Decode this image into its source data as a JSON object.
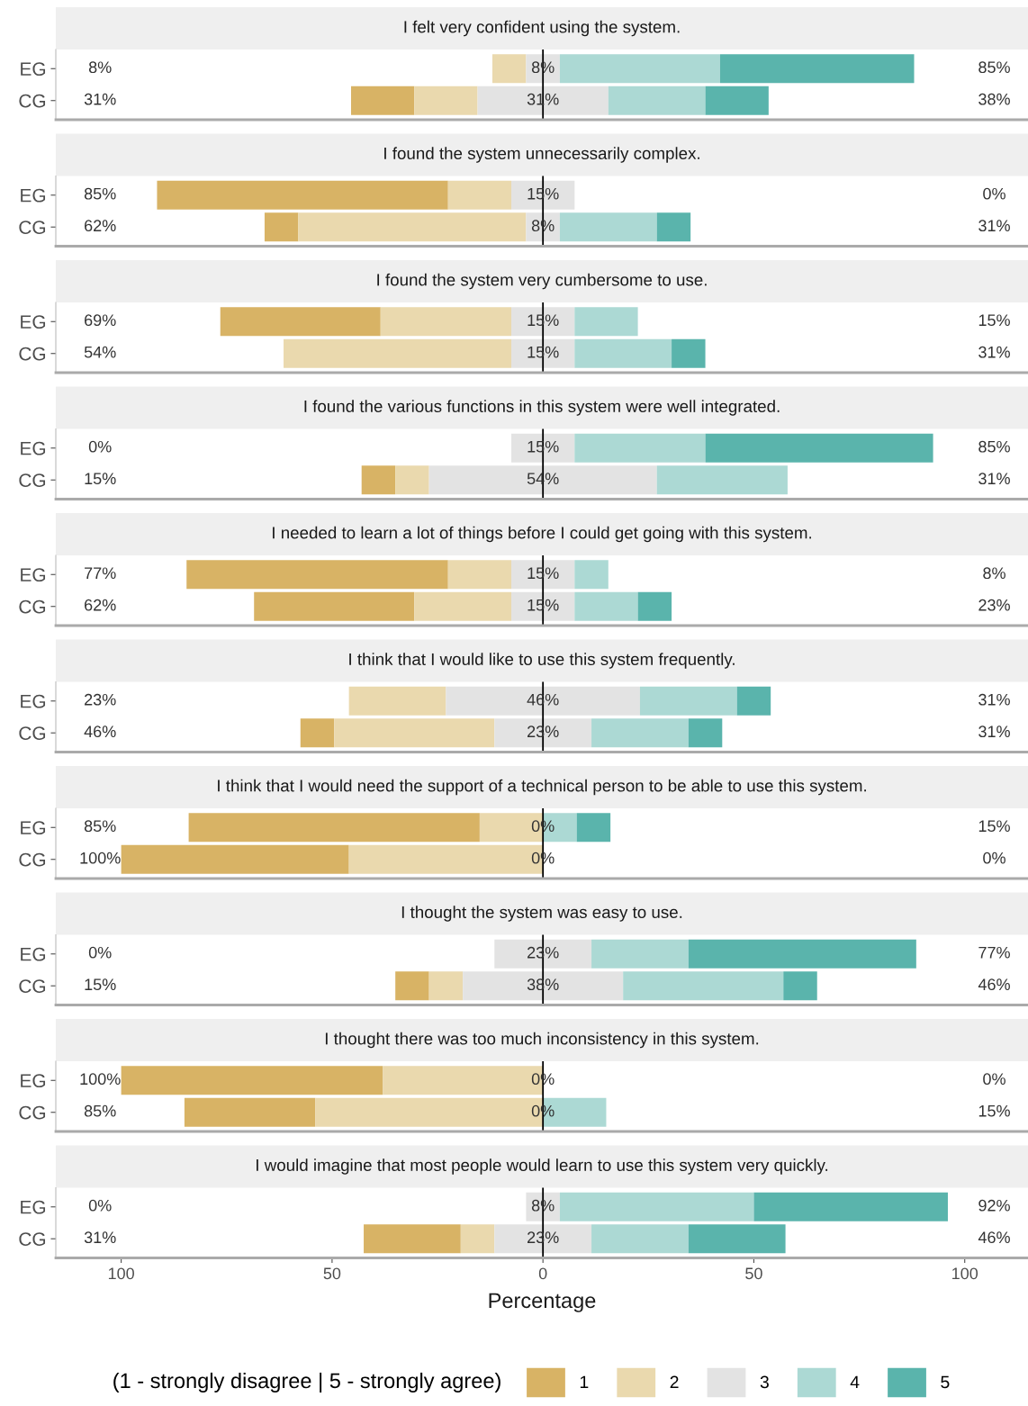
{
  "chart_data": [
    {
      "type": "bar",
      "orientation": "horizontal",
      "tick_labels": "y",
      "title": "I felt very confident using the system.",
      "categories": [
        "EG",
        "CG"
      ],
      "xlim": [
        -115.5,
        115
      ],
      "series": [
        {
          "color": "#d8b365",
          "base": [
            null,
            -45.5
          ],
          "values": [
            null,
            15
          ]
        },
        {
          "color": "#ead9ae",
          "base": [
            -12,
            -30.5
          ],
          "values": [
            8,
            15
          ]
        },
        {
          "color": "#e3e3e3",
          "base": [
            -4,
            -15.5
          ],
          "values": [
            8,
            31
          ]
        },
        {
          "color": "#acd9d4",
          "base": [
            4,
            15.5
          ],
          "values": [
            38,
            23
          ]
        },
        {
          "color": "#5ab4ac",
          "base": [
            42,
            38.5
          ],
          "values": [
            46,
            15
          ]
        }
      ],
      "ref_lines": [
        {
          "axis": "x",
          "value": 0,
          "color": "#000000",
          "line_style": "solid"
        }
      ],
      "annotations": [
        "8%",
        "31%",
        "8%",
        "31%",
        "85%",
        "38%"
      ]
    },
    {
      "type": "bar",
      "orientation": "horizontal",
      "tick_labels": "y",
      "title": "I found the system unnecessarily complex.",
      "categories": [
        "EG",
        "CG"
      ],
      "xlim": [
        -115.5,
        115
      ],
      "series": [
        {
          "color": "#d8b365",
          "base": [
            -91.5,
            -66
          ],
          "values": [
            69,
            8
          ]
        },
        {
          "color": "#ead9ae",
          "base": [
            -22.5,
            -58
          ],
          "values": [
            15,
            54
          ]
        },
        {
          "color": "#e3e3e3",
          "base": [
            -7.5,
            -4
          ],
          "values": [
            15,
            8
          ]
        },
        {
          "color": "#acd9d4",
          "base": [
            null,
            4
          ],
          "values": [
            null,
            23
          ]
        },
        {
          "color": "#5ab4ac",
          "base": [
            null,
            27
          ],
          "values": [
            null,
            8
          ]
        }
      ],
      "ref_lines": [
        {
          "axis": "x",
          "value": 0,
          "color": "#000000",
          "line_style": "solid"
        }
      ],
      "annotations": [
        "85%",
        "62%",
        "15%",
        "8%",
        "0%",
        "31%"
      ]
    },
    {
      "type": "bar",
      "orientation": "horizontal",
      "tick_labels": "y",
      "title": "I found the system very cumbersome to use.",
      "categories": [
        "EG",
        "CG"
      ],
      "xlim": [
        -115.5,
        115
      ],
      "series": [
        {
          "color": "#d8b365",
          "base": [
            -76.5,
            null
          ],
          "values": [
            38,
            null
          ]
        },
        {
          "color": "#ead9ae",
          "base": [
            -38.5,
            -61.5
          ],
          "values": [
            31,
            54
          ]
        },
        {
          "color": "#e3e3e3",
          "base": [
            -7.5,
            -7.5
          ],
          "values": [
            15,
            15
          ]
        },
        {
          "color": "#acd9d4",
          "base": [
            7.5,
            7.5
          ],
          "values": [
            15,
            23
          ]
        },
        {
          "color": "#5ab4ac",
          "base": [
            null,
            30.5
          ],
          "values": [
            null,
            8
          ]
        }
      ],
      "ref_lines": [
        {
          "axis": "x",
          "value": 0,
          "color": "#000000",
          "line_style": "solid"
        }
      ],
      "annotations": [
        "69%",
        "54%",
        "15%",
        "15%",
        "15%",
        "31%"
      ]
    },
    {
      "type": "bar",
      "orientation": "horizontal",
      "tick_labels": "y",
      "title": "I found the various functions in this system were well integrated.",
      "categories": [
        "EG",
        "CG"
      ],
      "xlim": [
        -115.5,
        115
      ],
      "series": [
        {
          "color": "#d8b365",
          "base": [
            null,
            -43
          ],
          "values": [
            null,
            8
          ]
        },
        {
          "color": "#ead9ae",
          "base": [
            null,
            -35
          ],
          "values": [
            null,
            8
          ]
        },
        {
          "color": "#e3e3e3",
          "base": [
            -7.5,
            -27
          ],
          "values": [
            15,
            54
          ]
        },
        {
          "color": "#acd9d4",
          "base": [
            7.5,
            27
          ],
          "values": [
            31,
            31
          ]
        },
        {
          "color": "#5ab4ac",
          "base": [
            38.5,
            null
          ],
          "values": [
            54,
            null
          ]
        }
      ],
      "ref_lines": [
        {
          "axis": "x",
          "value": 0,
          "color": "#000000",
          "line_style": "solid"
        }
      ],
      "annotations": [
        "0%",
        "15%",
        "15%",
        "54%",
        "85%",
        "31%"
      ]
    },
    {
      "type": "bar",
      "orientation": "horizontal",
      "tick_labels": "y",
      "title": "I needed to learn a lot of things before I could get going with this system.",
      "categories": [
        "EG",
        "CG"
      ],
      "xlim": [
        -115.5,
        115
      ],
      "series": [
        {
          "color": "#d8b365",
          "base": [
            -84.5,
            -68.5
          ],
          "values": [
            62,
            38
          ]
        },
        {
          "color": "#ead9ae",
          "base": [
            -22.5,
            -30.5
          ],
          "values": [
            15,
            23
          ]
        },
        {
          "color": "#e3e3e3",
          "base": [
            -7.5,
            -7.5
          ],
          "values": [
            15,
            15
          ]
        },
        {
          "color": "#acd9d4",
          "base": [
            7.5,
            7.5
          ],
          "values": [
            8,
            15
          ]
        },
        {
          "color": "#5ab4ac",
          "base": [
            null,
            22.5
          ],
          "values": [
            null,
            8
          ]
        }
      ],
      "ref_lines": [
        {
          "axis": "x",
          "value": 0,
          "color": "#000000",
          "line_style": "solid"
        }
      ],
      "annotations": [
        "77%",
        "62%",
        "15%",
        "15%",
        "8%",
        "23%"
      ]
    },
    {
      "type": "bar",
      "orientation": "horizontal",
      "tick_labels": "y",
      "title": "I think that I would like to use this system frequently.",
      "categories": [
        "EG",
        "CG"
      ],
      "xlim": [
        -115.5,
        115
      ],
      "series": [
        {
          "color": "#d8b365",
          "base": [
            null,
            -57.5
          ],
          "values": [
            null,
            8
          ]
        },
        {
          "color": "#ead9ae",
          "base": [
            -46,
            -49.5
          ],
          "values": [
            23,
            38
          ]
        },
        {
          "color": "#e3e3e3",
          "base": [
            -23,
            -11.5
          ],
          "values": [
            46,
            23
          ]
        },
        {
          "color": "#acd9d4",
          "base": [
            23,
            11.5
          ],
          "values": [
            23,
            23
          ]
        },
        {
          "color": "#5ab4ac",
          "base": [
            46,
            34.5
          ],
          "values": [
            8,
            8
          ]
        }
      ],
      "ref_lines": [
        {
          "axis": "x",
          "value": 0,
          "color": "#000000",
          "line_style": "solid"
        }
      ],
      "annotations": [
        "23%",
        "46%",
        "46%",
        "23%",
        "31%",
        "31%"
      ]
    },
    {
      "type": "bar",
      "orientation": "horizontal",
      "tick_labels": "y",
      "title": "I think that I would need the support of a technical person to be able to use this system.",
      "categories": [
        "EG",
        "CG"
      ],
      "xlim": [
        -115.5,
        115
      ],
      "series": [
        {
          "color": "#d8b365",
          "base": [
            -84,
            -100
          ],
          "values": [
            69,
            54
          ]
        },
        {
          "color": "#ead9ae",
          "base": [
            -15,
            -46
          ],
          "values": [
            15,
            46
          ]
        },
        {
          "color": "#e3e3e3",
          "base": [
            null,
            null
          ],
          "values": [
            null,
            null
          ]
        },
        {
          "color": "#acd9d4",
          "base": [
            0,
            null
          ],
          "values": [
            8,
            null
          ]
        },
        {
          "color": "#5ab4ac",
          "base": [
            8,
            null
          ],
          "values": [
            8,
            null
          ]
        }
      ],
      "ref_lines": [
        {
          "axis": "x",
          "value": 0,
          "color": "#000000",
          "line_style": "solid"
        }
      ],
      "annotations": [
        "85%",
        "100%",
        "0%",
        "0%",
        "15%",
        "0%"
      ]
    },
    {
      "type": "bar",
      "orientation": "horizontal",
      "tick_labels": "y",
      "title": "I thought the system was easy to use.",
      "categories": [
        "EG",
        "CG"
      ],
      "xlim": [
        -115.5,
        115
      ],
      "series": [
        {
          "color": "#d8b365",
          "base": [
            null,
            -35
          ],
          "values": [
            null,
            8
          ]
        },
        {
          "color": "#ead9ae",
          "base": [
            null,
            -27
          ],
          "values": [
            null,
            8
          ]
        },
        {
          "color": "#e3e3e3",
          "base": [
            -11.5,
            -19
          ],
          "values": [
            23,
            38
          ]
        },
        {
          "color": "#acd9d4",
          "base": [
            11.5,
            19
          ],
          "values": [
            23,
            38
          ]
        },
        {
          "color": "#5ab4ac",
          "base": [
            34.5,
            57
          ],
          "values": [
            54,
            8
          ]
        }
      ],
      "ref_lines": [
        {
          "axis": "x",
          "value": 0,
          "color": "#000000",
          "line_style": "solid"
        }
      ],
      "annotations": [
        "0%",
        "15%",
        "23%",
        "38%",
        "77%",
        "46%"
      ]
    },
    {
      "type": "bar",
      "orientation": "horizontal",
      "tick_labels": "y",
      "title": "I thought there was too much inconsistency in this system.",
      "categories": [
        "EG",
        "CG"
      ],
      "xlim": [
        -115.5,
        115
      ],
      "series": [
        {
          "color": "#d8b365",
          "base": [
            -100,
            -85
          ],
          "values": [
            62,
            31
          ]
        },
        {
          "color": "#ead9ae",
          "base": [
            -38,
            -54
          ],
          "values": [
            38,
            54
          ]
        },
        {
          "color": "#e3e3e3",
          "base": [
            null,
            null
          ],
          "values": [
            null,
            null
          ]
        },
        {
          "color": "#acd9d4",
          "base": [
            null,
            0
          ],
          "values": [
            null,
            15
          ]
        },
        {
          "color": "#5ab4ac",
          "base": [
            null,
            null
          ],
          "values": [
            null,
            null
          ]
        }
      ],
      "ref_lines": [
        {
          "axis": "x",
          "value": 0,
          "color": "#000000",
          "line_style": "solid"
        }
      ],
      "annotations": [
        "100%",
        "85%",
        "0%",
        "0%",
        "0%",
        "15%"
      ]
    },
    {
      "type": "bar",
      "orientation": "horizontal",
      "title": "I would imagine that most people would learn to use this system very quickly.",
      "xlabel": "Percentage",
      "legend": "bottom",
      "legend_title": "(1 - strongly disagree | 5 - strongly agree)",
      "categories": [
        "EG",
        "CG"
      ],
      "xlim": [
        -115.5,
        115
      ],
      "xticks": [
        {
          "value": -100,
          "label": "100"
        },
        {
          "value": -50,
          "label": "50"
        },
        0,
        50,
        100
      ],
      "series": [
        {
          "name": "1",
          "color": "#d8b365",
          "base": [
            null,
            -42.5
          ],
          "values": [
            null,
            23
          ]
        },
        {
          "name": "2",
          "color": "#ead9ae",
          "base": [
            null,
            -19.5
          ],
          "values": [
            null,
            8
          ]
        },
        {
          "name": "3",
          "color": "#e3e3e3",
          "base": [
            -4,
            -11.5
          ],
          "values": [
            8,
            23
          ]
        },
        {
          "name": "4",
          "color": "#acd9d4",
          "base": [
            4,
            11.5
          ],
          "values": [
            46,
            23
          ]
        },
        {
          "name": "5",
          "color": "#5ab4ac",
          "base": [
            50,
            34.5
          ],
          "values": [
            46,
            23
          ]
        }
      ],
      "ref_lines": [
        {
          "axis": "x",
          "value": 0,
          "color": "#000000",
          "line_style": "solid"
        }
      ],
      "annotations": [
        "0%",
        "31%",
        "8%",
        "23%",
        "92%",
        "46%"
      ]
    }
  ]
}
